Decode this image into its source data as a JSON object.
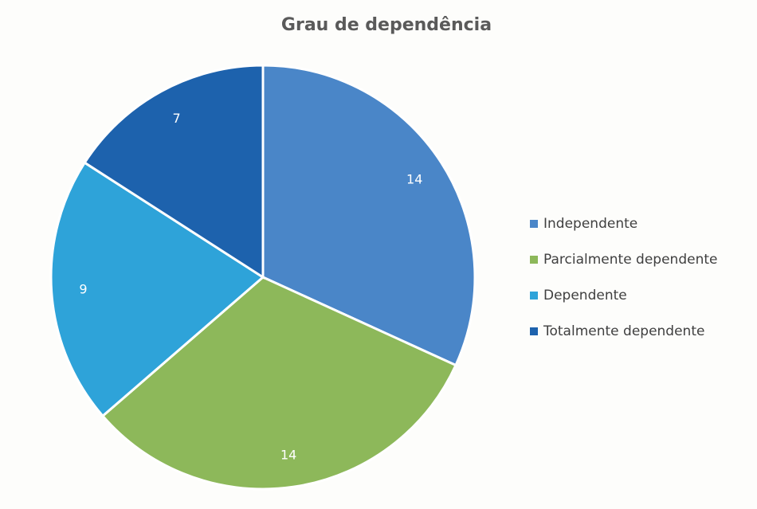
{
  "chart_data": {
    "type": "pie",
    "title": "Grau de dependência",
    "categories": [
      "Independente",
      "Parcialmente dependente",
      "Dependente",
      "Totalmente dependente"
    ],
    "values": [
      14,
      14,
      9,
      7
    ],
    "colors": [
      "#4a86c8",
      "#8db85a",
      "#2ea3d9",
      "#1d62ad"
    ],
    "legend": "right"
  }
}
